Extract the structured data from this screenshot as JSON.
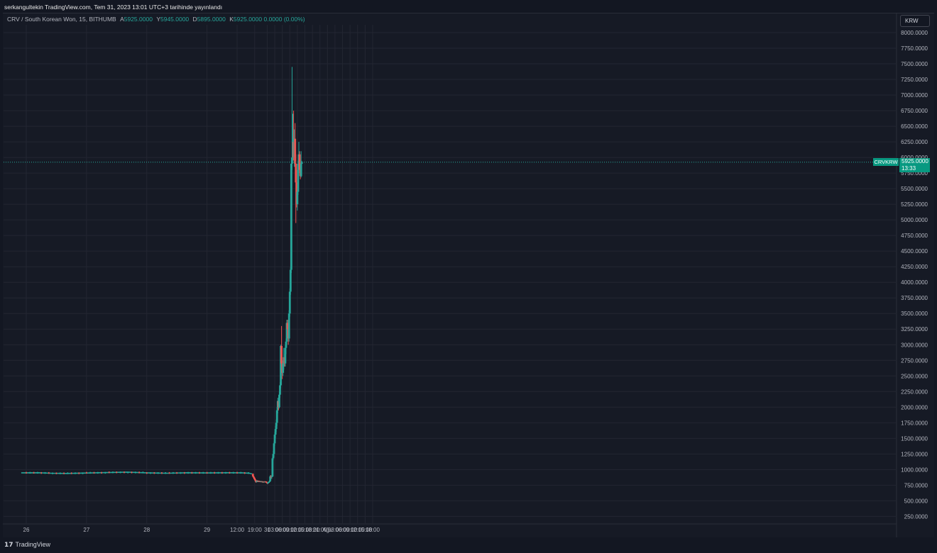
{
  "header": {
    "publish_note": "serkangultekin TradingView.com, Tem 31, 2023 13:01 UTC+3 tarihinde yayınlandı"
  },
  "legend": {
    "symbol": "CRV / South Korean Won, 15, BITHUMB",
    "open_label": "A",
    "open": "5925.0000",
    "high_label": "Y",
    "high": "5945.0000",
    "low_label": "D",
    "low": "5895.0000",
    "close_label": "K",
    "close": "5925.0000",
    "change": "0.0000 (0.00%)"
  },
  "currency_button": "KRW",
  "last_price": {
    "symbol": "CRVKRW",
    "price": "5925.0000",
    "countdown": "13:33"
  },
  "footer": {
    "brand": "TradingView",
    "logo": "17"
  },
  "colors": {
    "background": "#161a25",
    "grid": "#232632",
    "up": "#26a69a",
    "down": "#ef5350",
    "axis_text": "#b2b5be"
  },
  "chart_data": {
    "type": "candlestick",
    "ylim": [
      125,
      8125
    ],
    "y_ticks": [
      "250.0000",
      "500.0000",
      "750.0000",
      "1000.0000",
      "1250.0000",
      "1500.0000",
      "1750.0000",
      "2000.0000",
      "2250.0000",
      "2500.0000",
      "2750.0000",
      "3000.0000",
      "3250.0000",
      "3500.0000",
      "3750.0000",
      "4000.0000",
      "4250.0000",
      "4500.0000",
      "4750.0000",
      "5000.0000",
      "5250.0000",
      "5500.0000",
      "5750.0000",
      "6000.0000",
      "6250.0000",
      "6500.0000",
      "6750.0000",
      "7000.0000",
      "7250.0000",
      "7500.0000",
      "7750.0000",
      "8000.0000"
    ],
    "x_ticks": [
      {
        "label": "26",
        "t": 0
      },
      {
        "label": "27",
        "t": 24
      },
      {
        "label": "28",
        "t": 48
      },
      {
        "label": "29",
        "t": 72
      },
      {
        "label": "12:00",
        "t": 84
      },
      {
        "label": "19:00",
        "t": 91
      },
      {
        "label": "31",
        "t": 96
      },
      {
        "label": "03:00",
        "t": 99
      },
      {
        "label": "06:00",
        "t": 102
      },
      {
        "label": "09:00",
        "t": 105
      },
      {
        "label": "12:00",
        "t": 108
      },
      {
        "label": "15:00",
        "t": 111
      },
      {
        "label": "18:00",
        "t": 114
      },
      {
        "label": "21:00",
        "t": 117
      },
      {
        "label": "Ağu",
        "t": 120
      },
      {
        "label": "03:00",
        "t": 123
      },
      {
        "label": "06:00",
        "t": 126
      },
      {
        "label": "09:00",
        "t": 129
      },
      {
        "label": "12:00",
        "t": 132
      },
      {
        "label": "15:00",
        "t": 135
      },
      {
        "label": "18:00",
        "t": 138
      }
    ],
    "flat_series": {
      "t": [
        -2,
        5,
        10,
        16,
        24,
        32,
        40,
        48,
        56,
        64,
        72,
        80,
        86,
        89,
        90
      ],
      "price": [
        948,
        950,
        942,
        938,
        945,
        952,
        960,
        948,
        942,
        950,
        946,
        950,
        948,
        942,
        930
      ]
    },
    "candles": [
      {
        "t": 90.3,
        "o": 930,
        "h": 940,
        "l": 880,
        "c": 890
      },
      {
        "t": 90.6,
        "o": 890,
        "h": 905,
        "l": 860,
        "c": 870
      },
      {
        "t": 90.9,
        "o": 870,
        "h": 880,
        "l": 835,
        "c": 845
      },
      {
        "t": 91.2,
        "o": 845,
        "h": 860,
        "l": 815,
        "c": 825
      },
      {
        "t": 91.5,
        "o": 825,
        "h": 835,
        "l": 790,
        "c": 800
      },
      {
        "t": 91.8,
        "o": 800,
        "h": 830,
        "l": 795,
        "c": 820
      },
      {
        "t": 92.1,
        "o": 820,
        "h": 830,
        "l": 800,
        "c": 810
      },
      {
        "t": 92.4,
        "o": 810,
        "h": 825,
        "l": 800,
        "c": 815
      },
      {
        "t": 92.7,
        "o": 815,
        "h": 825,
        "l": 805,
        "c": 812
      },
      {
        "t": 93.0,
        "o": 812,
        "h": 820,
        "l": 800,
        "c": 808
      },
      {
        "t": 93.3,
        "o": 808,
        "h": 818,
        "l": 800,
        "c": 810
      },
      {
        "t": 93.6,
        "o": 810,
        "h": 818,
        "l": 800,
        "c": 805
      },
      {
        "t": 93.9,
        "o": 805,
        "h": 815,
        "l": 798,
        "c": 810
      },
      {
        "t": 94.2,
        "o": 810,
        "h": 815,
        "l": 790,
        "c": 795
      },
      {
        "t": 94.5,
        "o": 795,
        "h": 810,
        "l": 790,
        "c": 805
      },
      {
        "t": 94.8,
        "o": 805,
        "h": 815,
        "l": 795,
        "c": 800
      },
      {
        "t": 95.1,
        "o": 800,
        "h": 812,
        "l": 795,
        "c": 808
      },
      {
        "t": 95.4,
        "o": 808,
        "h": 815,
        "l": 795,
        "c": 802
      },
      {
        "t": 95.7,
        "o": 802,
        "h": 810,
        "l": 785,
        "c": 790
      },
      {
        "t": 96.0,
        "o": 790,
        "h": 805,
        "l": 770,
        "c": 780
      },
      {
        "t": 96.3,
        "o": 780,
        "h": 800,
        "l": 770,
        "c": 795
      },
      {
        "t": 96.6,
        "o": 795,
        "h": 810,
        "l": 785,
        "c": 800
      },
      {
        "t": 96.9,
        "o": 800,
        "h": 830,
        "l": 795,
        "c": 815
      },
      {
        "t": 97.2,
        "o": 815,
        "h": 910,
        "l": 805,
        "c": 890
      },
      {
        "t": 97.5,
        "o": 890,
        "h": 910,
        "l": 860,
        "c": 880
      },
      {
        "t": 97.8,
        "o": 880,
        "h": 900,
        "l": 850,
        "c": 890
      },
      {
        "t": 98.1,
        "o": 890,
        "h": 1200,
        "l": 880,
        "c": 1180
      },
      {
        "t": 98.4,
        "o": 1180,
        "h": 1300,
        "l": 1150,
        "c": 1250
      },
      {
        "t": 98.7,
        "o": 1250,
        "h": 1450,
        "l": 1200,
        "c": 1420
      },
      {
        "t": 99.0,
        "o": 1420,
        "h": 1600,
        "l": 1380,
        "c": 1560
      },
      {
        "t": 99.3,
        "o": 1560,
        "h": 1700,
        "l": 1500,
        "c": 1650
      },
      {
        "t": 99.6,
        "o": 1650,
        "h": 1800,
        "l": 1600,
        "c": 1750
      },
      {
        "t": 99.9,
        "o": 1750,
        "h": 2000,
        "l": 1700,
        "c": 1950
      },
      {
        "t": 100.2,
        "o": 1950,
        "h": 2150,
        "l": 1900,
        "c": 2100
      },
      {
        "t": 100.5,
        "o": 2100,
        "h": 2100,
        "l": 1950,
        "c": 2000
      },
      {
        "t": 100.8,
        "o": 2000,
        "h": 2250,
        "l": 1980,
        "c": 2200
      },
      {
        "t": 101.1,
        "o": 2200,
        "h": 2400,
        "l": 2150,
        "c": 2350
      },
      {
        "t": 101.4,
        "o": 2350,
        "h": 3000,
        "l": 2300,
        "c": 2980
      },
      {
        "t": 101.7,
        "o": 2980,
        "h": 3300,
        "l": 2650,
        "c": 2700
      },
      {
        "t": 102.0,
        "o": 2700,
        "h": 2750,
        "l": 2450,
        "c": 2550
      },
      {
        "t": 102.3,
        "o": 2550,
        "h": 2750,
        "l": 2500,
        "c": 2700
      },
      {
        "t": 102.6,
        "o": 2700,
        "h": 2950,
        "l": 2600,
        "c": 2800
      },
      {
        "t": 102.9,
        "o": 2800,
        "h": 2850,
        "l": 2650,
        "c": 2700
      },
      {
        "t": 103.2,
        "o": 2700,
        "h": 3000,
        "l": 2650,
        "c": 2950
      },
      {
        "t": 103.5,
        "o": 2950,
        "h": 3100,
        "l": 2850,
        "c": 3050
      },
      {
        "t": 103.8,
        "o": 3050,
        "h": 3400,
        "l": 3000,
        "c": 3350
      },
      {
        "t": 104.1,
        "o": 3350,
        "h": 3400,
        "l": 3150,
        "c": 3250
      },
      {
        "t": 104.4,
        "o": 3250,
        "h": 3300,
        "l": 3000,
        "c": 3100
      },
      {
        "t": 104.7,
        "o": 3100,
        "h": 3550,
        "l": 3050,
        "c": 3500
      },
      {
        "t": 105.0,
        "o": 3500,
        "h": 3900,
        "l": 3450,
        "c": 3850
      },
      {
        "t": 105.3,
        "o": 3850,
        "h": 4250,
        "l": 3800,
        "c": 4200
      },
      {
        "t": 105.6,
        "o": 4200,
        "h": 5950,
        "l": 4150,
        "c": 5900
      },
      {
        "t": 105.9,
        "o": 5900,
        "h": 7450,
        "l": 5800,
        "c": 6000
      },
      {
        "t": 106.2,
        "o": 6000,
        "h": 6700,
        "l": 5950,
        "c": 6250
      },
      {
        "t": 106.5,
        "o": 6250,
        "h": 6750,
        "l": 5950,
        "c": 6000
      },
      {
        "t": 106.8,
        "o": 6000,
        "h": 6450,
        "l": 5850,
        "c": 6300
      },
      {
        "t": 107.1,
        "o": 6300,
        "h": 6550,
        "l": 5850,
        "c": 5900
      },
      {
        "t": 107.4,
        "o": 5900,
        "h": 6050,
        "l": 4950,
        "c": 5600
      },
      {
        "t": 107.7,
        "o": 5600,
        "h": 5800,
        "l": 5200,
        "c": 5250
      },
      {
        "t": 108.0,
        "o": 5250,
        "h": 5500,
        "l": 5150,
        "c": 5450
      },
      {
        "t": 108.3,
        "o": 5450,
        "h": 5950,
        "l": 5400,
        "c": 5900
      },
      {
        "t": 108.6,
        "o": 5900,
        "h": 6250,
        "l": 5850,
        "c": 6050
      },
      {
        "t": 108.9,
        "o": 6050,
        "h": 6100,
        "l": 5750,
        "c": 5800
      },
      {
        "t": 109.2,
        "o": 5800,
        "h": 5900,
        "l": 5650,
        "c": 5700
      },
      {
        "t": 109.5,
        "o": 5700,
        "h": 6100,
        "l": 5680,
        "c": 5900
      },
      {
        "t": 109.8,
        "o": 5900,
        "h": 5945,
        "l": 5895,
        "c": 5925
      }
    ],
    "last_price_value": 5925
  }
}
